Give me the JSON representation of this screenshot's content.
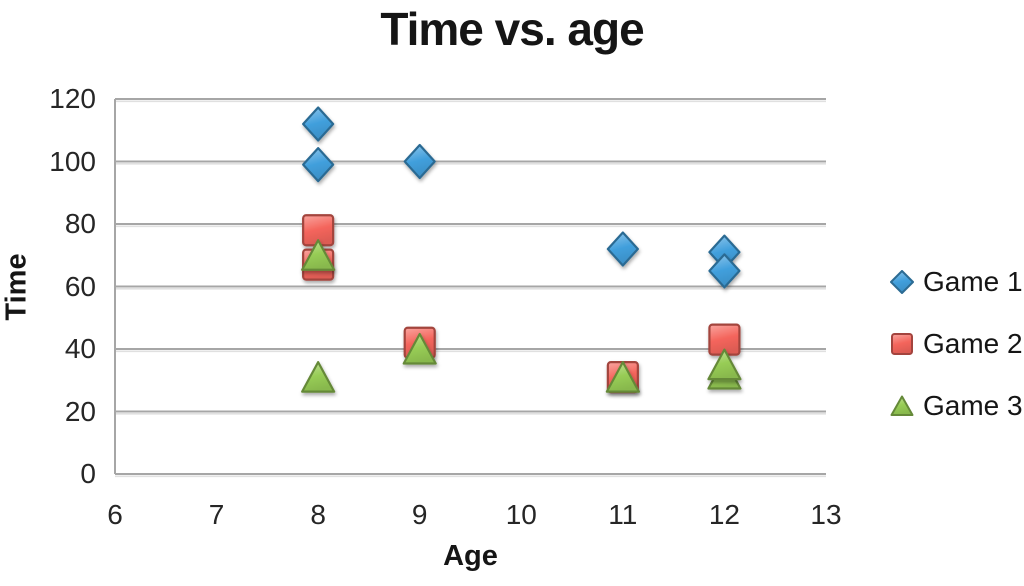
{
  "chart_data": {
    "type": "scatter",
    "title": "Time vs. age",
    "xlabel": "Age",
    "ylabel": "Time",
    "xlim": [
      6,
      13
    ],
    "ylim": [
      0,
      120
    ],
    "x_ticks": [
      6,
      7,
      8,
      9,
      10,
      11,
      12,
      13
    ],
    "y_ticks": [
      0,
      20,
      40,
      60,
      80,
      100,
      120
    ],
    "grid": "horizontal",
    "gridline_color": "#A6A6A6",
    "axis_text_color": "#262626",
    "legend_position": "right",
    "series": [
      {
        "name": "Game 1",
        "marker": "diamond",
        "color": "#419FDC",
        "points": [
          [
            8,
            112
          ],
          [
            8,
            99
          ],
          [
            9,
            100
          ],
          [
            11,
            72
          ],
          [
            12,
            71
          ],
          [
            12,
            65
          ]
        ]
      },
      {
        "name": "Game 2",
        "marker": "square",
        "color": "#F4655C",
        "points": [
          [
            8,
            78
          ],
          [
            8,
            67
          ],
          [
            9,
            42
          ],
          [
            11,
            31
          ],
          [
            12,
            43
          ]
        ]
      },
      {
        "name": "Game 3",
        "marker": "triangle",
        "color": "#97CC55",
        "points": [
          [
            8,
            70
          ],
          [
            8,
            31
          ],
          [
            9,
            40
          ],
          [
            11,
            31
          ],
          [
            12,
            32
          ],
          [
            12,
            35
          ]
        ]
      }
    ]
  }
}
